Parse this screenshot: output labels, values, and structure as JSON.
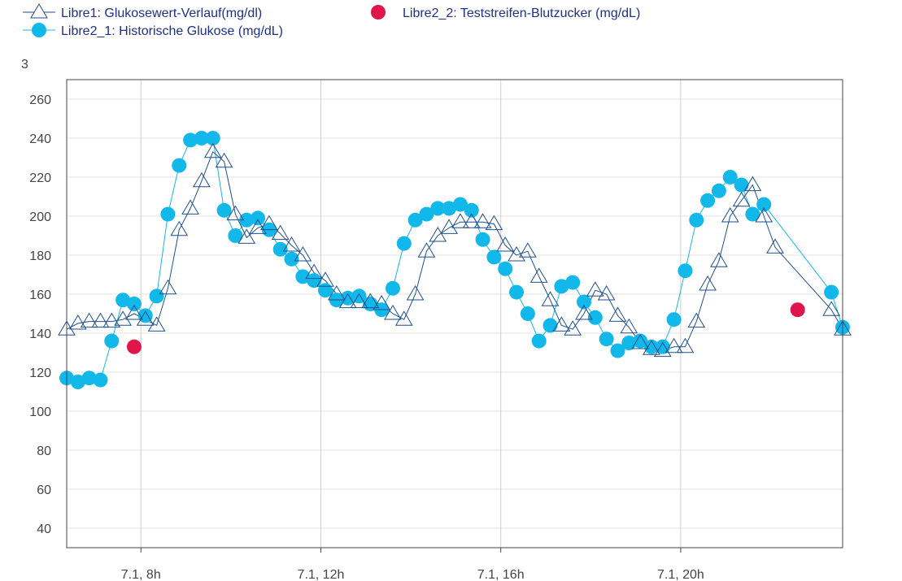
{
  "chart_data": {
    "type": "line",
    "corner_label": "3",
    "ylim": [
      30,
      270
    ],
    "y_ticks": [
      40,
      60,
      80,
      100,
      120,
      140,
      160,
      180,
      200,
      220,
      240,
      260
    ],
    "x_ticks": [
      {
        "label": "7.1,  8h",
        "hour": 8
      },
      {
        "label": "7.1,  12h",
        "hour": 12
      },
      {
        "label": "7.1,  16h",
        "hour": 16
      },
      {
        "label": "7.1,  20h",
        "hour": 20
      }
    ],
    "xlim_hours": [
      6.35,
      23.6
    ],
    "grid": true,
    "legend_position": "top",
    "series": [
      {
        "name": "Libre1: Glukosewert-Verlauf(mg/dl)",
        "marker": "triangle",
        "color": "#1f4f8c",
        "x": [
          6.35,
          6.6,
          6.85,
          7.1,
          7.35,
          7.6,
          7.85,
          8.1,
          8.35,
          8.6,
          8.85,
          9.1,
          9.35,
          9.6,
          9.85,
          10.1,
          10.35,
          10.6,
          10.85,
          11.1,
          11.35,
          11.6,
          11.85,
          12.1,
          12.35,
          12.6,
          12.85,
          13.1,
          13.35,
          13.6,
          13.85,
          14.1,
          14.35,
          14.6,
          14.85,
          15.1,
          15.35,
          15.6,
          15.85,
          16.1,
          16.35,
          16.6,
          16.85,
          17.1,
          17.35,
          17.6,
          17.85,
          18.1,
          18.35,
          18.6,
          18.85,
          19.1,
          19.35,
          19.6,
          19.85,
          20.1,
          20.35,
          20.6,
          20.85,
          21.1,
          21.35,
          21.6,
          21.85,
          22.1,
          23.35,
          23.6
        ],
        "y": [
          142,
          145,
          146,
          146,
          146,
          147,
          150,
          147,
          144,
          163,
          193,
          204,
          218,
          233,
          228,
          201,
          189,
          194,
          196,
          191,
          185,
          180,
          171,
          167,
          160,
          156,
          156,
          156,
          155,
          150,
          147,
          160,
          182,
          190,
          194,
          197,
          197,
          197,
          196,
          185,
          180,
          182,
          169,
          157,
          144,
          142,
          150,
          162,
          160,
          149,
          143,
          135,
          132,
          131,
          133,
          133,
          146,
          165,
          177,
          200,
          208,
          216,
          200,
          184,
          152,
          142
        ]
      },
      {
        "name": "Libre2_1: Historische Glukose (mg/dL)",
        "marker": "circle",
        "color": "#12b8ea",
        "x": [
          6.35,
          6.6,
          6.85,
          7.1,
          7.35,
          7.6,
          7.85,
          8.1,
          8.35,
          8.6,
          8.85,
          9.1,
          9.35,
          9.6,
          9.85,
          10.1,
          10.35,
          10.6,
          10.85,
          11.1,
          11.35,
          11.6,
          11.85,
          12.1,
          12.35,
          12.6,
          12.85,
          13.1,
          13.35,
          13.6,
          13.85,
          14.1,
          14.35,
          14.6,
          14.85,
          15.1,
          15.35,
          15.6,
          15.85,
          16.1,
          16.35,
          16.6,
          16.85,
          17.1,
          17.35,
          17.6,
          17.85,
          18.1,
          18.35,
          18.6,
          18.85,
          19.1,
          19.35,
          19.6,
          19.85,
          20.1,
          20.35,
          20.6,
          20.85,
          21.1,
          21.35,
          21.6,
          21.85,
          22.1,
          23.35,
          23.6
        ],
        "y": [
          117,
          115,
          117,
          116,
          136,
          157,
          155,
          149,
          159,
          201,
          226,
          239,
          240,
          240,
          203,
          190,
          198,
          199,
          193,
          183,
          178,
          169,
          167,
          162,
          157,
          158,
          159,
          155,
          152,
          163,
          186,
          198,
          201,
          204,
          204,
          206,
          203,
          188,
          179,
          173,
          161,
          150,
          136,
          144,
          164,
          166,
          156,
          148,
          137,
          131,
          135,
          136,
          133,
          133,
          147,
          172,
          198,
          208,
          213,
          220,
          216,
          201,
          206,
          null,
          161,
          143
        ]
      },
      {
        "name": "Libre2_2: Teststreifen-Blutzucker (mg/dL)",
        "marker": "dot",
        "color": "#e0164a",
        "x": [
          7.85,
          22.6
        ],
        "y": [
          133,
          152
        ]
      }
    ]
  }
}
